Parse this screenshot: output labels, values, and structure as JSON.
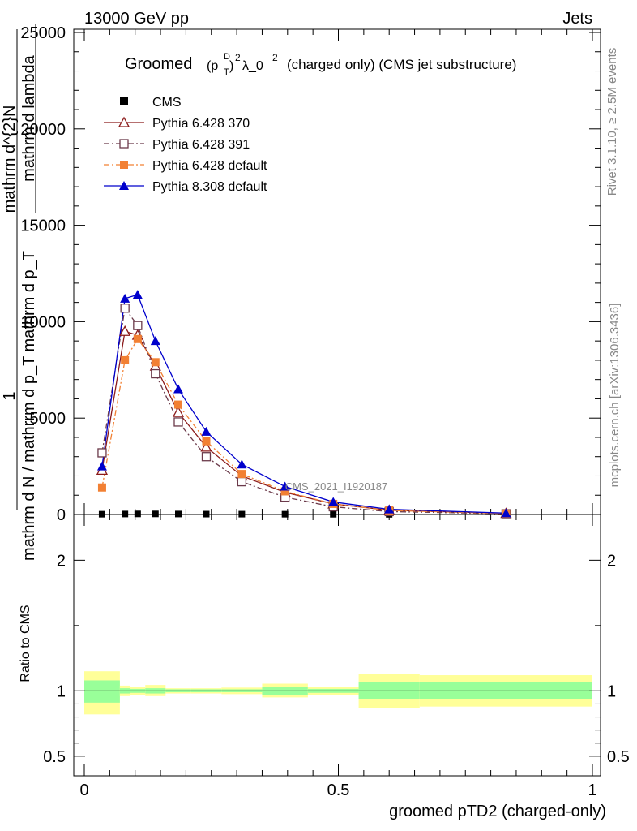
{
  "header": {
    "left": "13000 GeV pp",
    "right": "Jets"
  },
  "side": {
    "rivet": "Rivet 3.1.10, ≥ 2.5M events",
    "mcplots": "mcplots.cern.ch [arXiv:1306.3436]"
  },
  "watermark": "CMS_2021_I1920187",
  "chart_data": {
    "type": "line",
    "title": {
      "prefix": "Groomed",
      "paren_open": "(p",
      "sup_d": "D",
      "sub_t": "T",
      "paren_close": ")",
      "sq1": "2",
      "mid": "λ_0",
      "sq2": "2",
      "suffix": "(charged only) (CMS jet substructure)"
    },
    "xlabel": "groomed pTD2 (charged-only)",
    "ylabel_main": {
      "one": "1",
      "denominator": "mathrm d N / mathrrm d p_T mathrm d p_T",
      "numerator": "mathrm d^{2}N",
      "numerator_tail": "mathrm d lambda"
    },
    "ylabel_ratio": "Ratio to CMS",
    "xlim": [
      0,
      1
    ],
    "ylim": [
      0,
      25000
    ],
    "ratio_ylim": [
      0.35,
      2.35
    ],
    "x_ticks": [
      "0",
      "0.5",
      "1"
    ],
    "y_ticks": [
      "0",
      "5000",
      "10000",
      "15000",
      "20000",
      "25000"
    ],
    "ratio_ticks": [
      "0.5",
      "1",
      "2"
    ],
    "x": [
      0.035,
      0.08,
      0.105,
      0.14,
      0.185,
      0.24,
      0.31,
      0.395,
      0.49,
      0.6,
      0.83
    ],
    "series": [
      {
        "name": "CMS",
        "color": "#000000",
        "marker": "filled-square",
        "line": "none",
        "values": [
          15,
          25,
          30,
          30,
          25,
          20,
          18,
          15,
          12,
          8,
          3
        ]
      },
      {
        "name": "Pythia 6.428 370",
        "color": "#8b1a1a",
        "marker": "open-triangle",
        "line": "solid",
        "values": [
          2300,
          9500,
          9300,
          7700,
          5300,
          3500,
          2000,
          1150,
          550,
          220,
          60
        ]
      },
      {
        "name": "Pythia 6.428 391",
        "color": "#6b3a4a",
        "marker": "open-square",
        "line": "dashdot",
        "values": [
          3200,
          10700,
          9800,
          7300,
          4800,
          3000,
          1700,
          900,
          400,
          150,
          40
        ]
      },
      {
        "name": "Pythia 6.428 default",
        "color": "#f28033",
        "marker": "filled-square",
        "line": "dashdot",
        "values": [
          1400,
          8000,
          9100,
          7900,
          5700,
          3800,
          2100,
          1200,
          550,
          210,
          50
        ]
      },
      {
        "name": "Pythia 8.308 default",
        "color": "#0000cc",
        "marker": "filled-triangle",
        "line": "solid",
        "values": [
          2500,
          11200,
          11400,
          9000,
          6500,
          4300,
          2600,
          1450,
          650,
          270,
          70
        ]
      }
    ],
    "ratio_bands": [
      {
        "x0": 0.0,
        "x1": 0.07,
        "g0": 0.91,
        "g1": 1.08,
        "y0": 0.82,
        "y1": 1.15
      },
      {
        "x0": 0.07,
        "x1": 0.09,
        "g0": 0.98,
        "g1": 1.02,
        "y0": 0.96,
        "y1": 1.04
      },
      {
        "x0": 0.09,
        "x1": 0.12,
        "g0": 0.985,
        "g1": 1.015,
        "y0": 0.97,
        "y1": 1.03
      },
      {
        "x0": 0.12,
        "x1": 0.16,
        "g0": 0.98,
        "g1": 1.02,
        "y0": 0.96,
        "y1": 1.045
      },
      {
        "x0": 0.16,
        "x1": 0.21,
        "g0": 0.99,
        "g1": 1.012,
        "y0": 0.98,
        "y1": 1.02
      },
      {
        "x0": 0.21,
        "x1": 0.27,
        "g0": 0.99,
        "g1": 1.012,
        "y0": 0.98,
        "y1": 1.02
      },
      {
        "x0": 0.27,
        "x1": 0.35,
        "g0": 0.99,
        "g1": 1.012,
        "y0": 0.975,
        "y1": 1.025
      },
      {
        "x0": 0.35,
        "x1": 0.44,
        "g0": 0.97,
        "g1": 1.03,
        "y0": 0.95,
        "y1": 1.055
      },
      {
        "x0": 0.44,
        "x1": 0.54,
        "g0": 0.985,
        "g1": 1.015,
        "y0": 0.97,
        "y1": 1.03
      },
      {
        "x0": 0.54,
        "x1": 0.66,
        "g0": 0.94,
        "g1": 1.07,
        "y0": 0.87,
        "y1": 1.13
      },
      {
        "x0": 0.66,
        "x1": 1.0,
        "g0": 0.94,
        "g1": 1.07,
        "y0": 0.88,
        "y1": 1.12
      }
    ]
  }
}
